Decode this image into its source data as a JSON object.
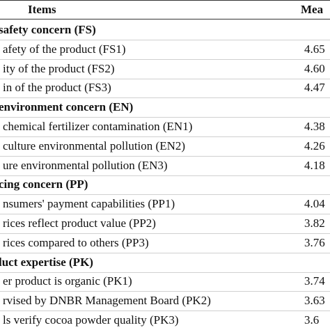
{
  "header": {
    "items": "Items",
    "mean": "Mea"
  },
  "groups": [
    {
      "title": "safety concern (FS)",
      "rows": [
        {
          "item": "afety of the product (FS1)",
          "mean": "4.65"
        },
        {
          "item": "ity of the product (FS2)",
          "mean": "4.60"
        },
        {
          "item": "in of the product (FS3)",
          "mean": "4.47"
        }
      ]
    },
    {
      "title": "environment concern (EN)",
      "rows": [
        {
          "item": "chemical fertilizer contamination (EN1)",
          "mean": "4.38"
        },
        {
          "item": "culture environmental pollution (EN2)",
          "mean": "4.26"
        },
        {
          "item": "ure environmental pollution (EN3)",
          "mean": "4.18"
        }
      ]
    },
    {
      "title": "cing concern (PP)",
      "rows": [
        {
          "item": "nsumers' payment capabilities (PP1)",
          "mean": "4.04"
        },
        {
          "item": "rices reflect product value (PP2)",
          "mean": "3.82"
        },
        {
          "item": "rices compared to others (PP3)",
          "mean": "3.76"
        }
      ]
    },
    {
      "title": "luct expertise (PK)",
      "rows": [
        {
          "item": "er product is organic (PK1)",
          "mean": "3.74"
        },
        {
          "item": "rvised by DNBR Management Board (PK2)",
          "mean": "3.63"
        },
        {
          "item": "ls verify cocoa powder quality (PK3)",
          "mean": "3.6"
        }
      ]
    }
  ]
}
